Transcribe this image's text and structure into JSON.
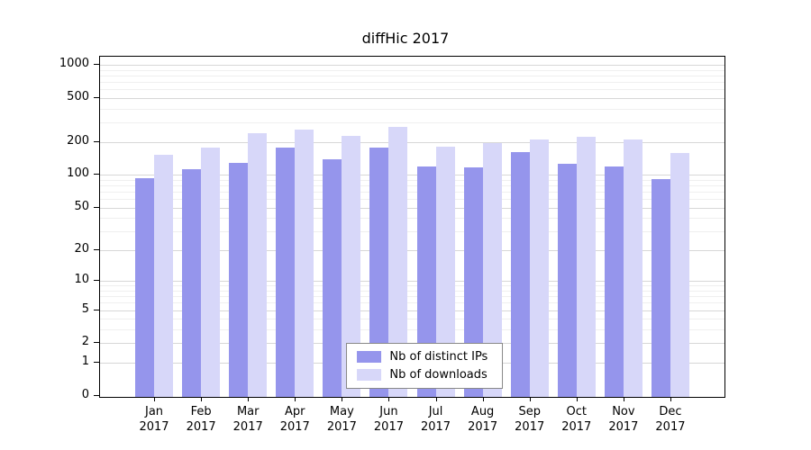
{
  "title": "diffHic 2017",
  "chart_data": {
    "type": "bar",
    "title": "diffHic 2017",
    "categories": [
      "Jan",
      "Feb",
      "Mar",
      "Apr",
      "May",
      "Jun",
      "Jul",
      "Aug",
      "Sep",
      "Oct",
      "Nov",
      "Dec"
    ],
    "year": "2017",
    "series": [
      {
        "name": "Nb of distinct IPs",
        "color": "#9595ec",
        "values": [
          95,
          115,
          130,
          180,
          140,
          180,
          122,
          118,
          163,
          128,
          122,
          93
        ]
      },
      {
        "name": "Nb of downloads",
        "color": "#d7d7f9",
        "values": [
          155,
          180,
          245,
          265,
          230,
          280,
          185,
          198,
          215,
          228,
          215,
          160
        ]
      }
    ],
    "ylabel": "",
    "xlabel": "",
    "yscale": "log10(value+1), 0 at baseline",
    "yticks": [
      0,
      1,
      2,
      5,
      10,
      20,
      50,
      100,
      200,
      500,
      1000
    ],
    "ylim": [
      0,
      1000
    ],
    "minor_gridlines": [
      3,
      4,
      6,
      7,
      8,
      9,
      30,
      40,
      60,
      70,
      80,
      90,
      300,
      400,
      600,
      700,
      800,
      900
    ],
    "grid": "horizontal",
    "legend_position": "inside-bottom-center",
    "legend": [
      "Nb of distinct IPs",
      "Nb of downloads"
    ]
  }
}
